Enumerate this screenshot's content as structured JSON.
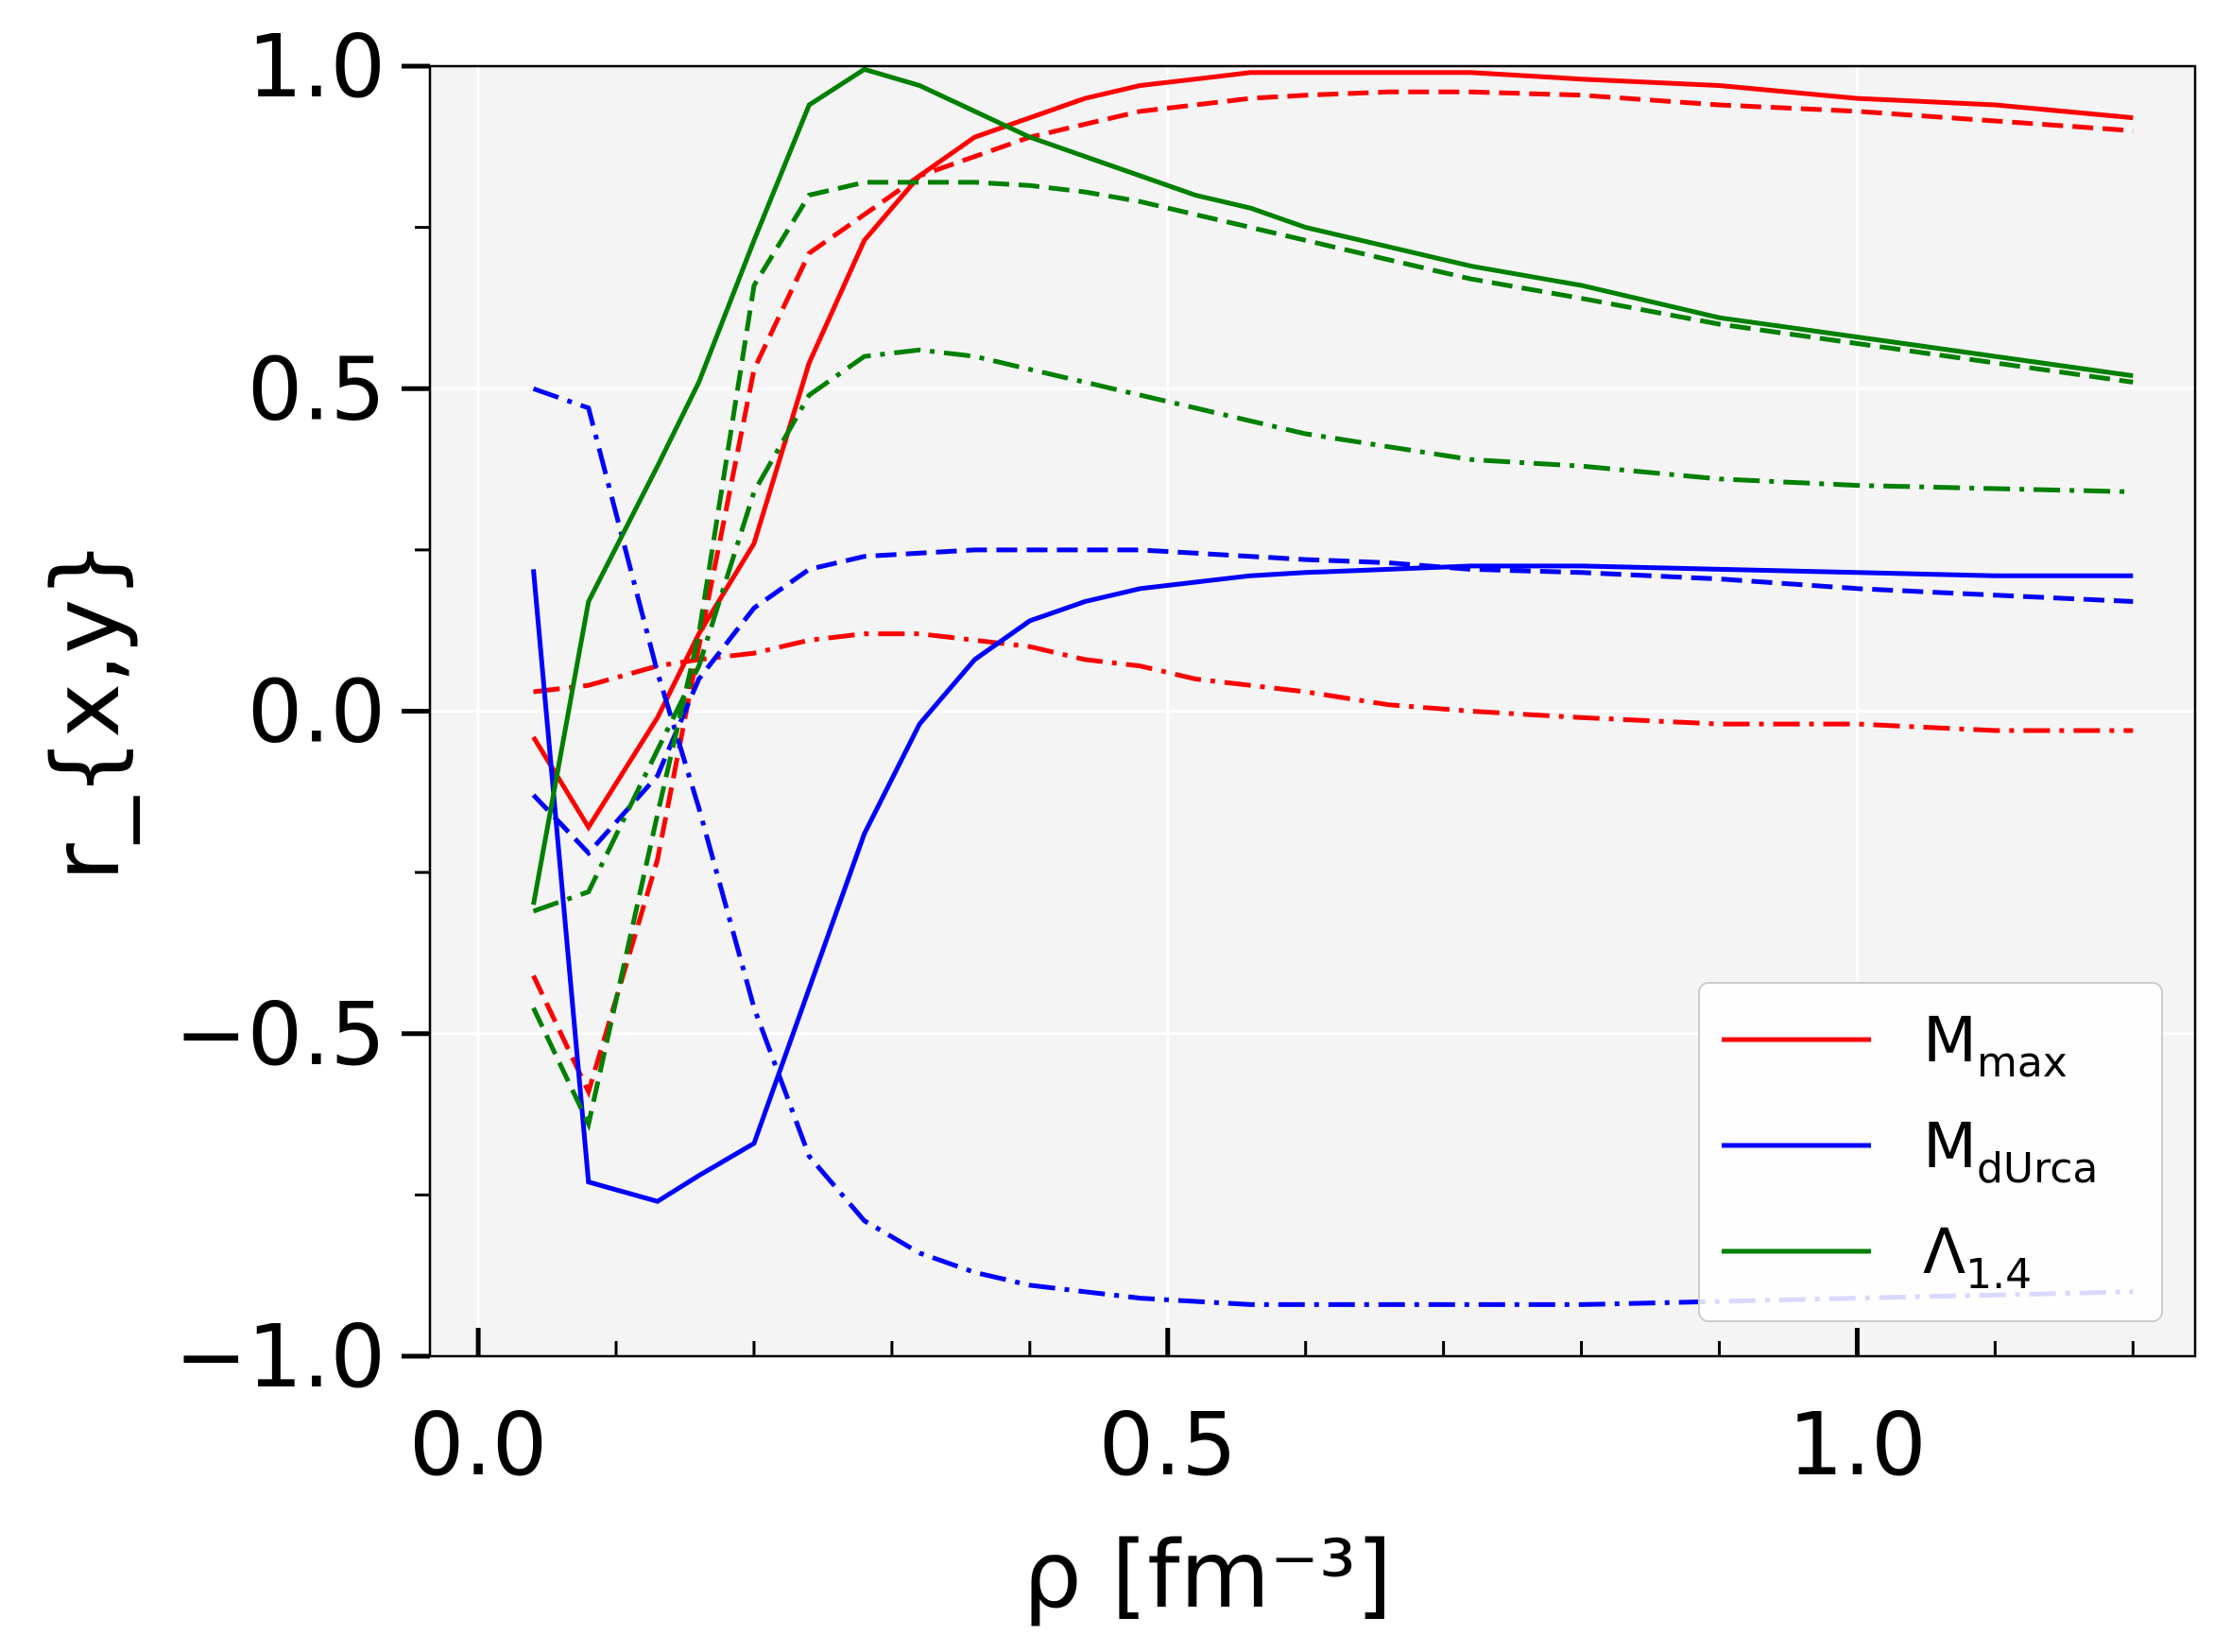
{
  "chart_data": {
    "type": "line",
    "title": "",
    "xlabel": "ρ [fm⁻³]",
    "ylabel": "r_{x,y}",
    "xlim": [
      -0.035,
      1.245
    ],
    "ylim": [
      -1.0,
      1.0
    ],
    "x_ticks": [
      0.0,
      0.5,
      1.0
    ],
    "x_tick_labels": [
      "0.0",
      "0.5",
      "1.0"
    ],
    "y_ticks": [
      -1.0,
      -0.5,
      0.0,
      0.5,
      1.0
    ],
    "y_tick_labels": [
      "−1.0",
      "−0.5",
      "0.0",
      "0.5",
      "1.0"
    ],
    "grid": true,
    "legend_placement": "lower-right",
    "colors": {
      "mmax": "#ff0000",
      "mdurca": "#0000ff",
      "lambda": "#008000",
      "background": "#f4f4f4"
    },
    "legend": [
      {
        "main": "M",
        "sub": "max",
        "color": "#ff0000"
      },
      {
        "main": "M",
        "sub": "dUrca",
        "color": "#0000ff"
      },
      {
        "main": "Λ",
        "sub": "1.4",
        "color": "#008000"
      }
    ],
    "x": [
      0.04,
      0.08,
      0.13,
      0.16,
      0.2,
      0.24,
      0.28,
      0.32,
      0.36,
      0.4,
      0.44,
      0.48,
      0.52,
      0.56,
      0.6,
      0.66,
      0.72,
      0.8,
      0.9,
      1.0,
      1.1,
      1.2
    ],
    "series": [
      {
        "group": "mmax",
        "style": "solid",
        "color": "#ff0000",
        "values": [
          -0.04,
          -0.18,
          -0.01,
          0.12,
          0.26,
          0.54,
          0.73,
          0.83,
          0.89,
          0.92,
          0.95,
          0.97,
          0.98,
          0.99,
          0.99,
          0.99,
          0.99,
          0.98,
          0.97,
          0.95,
          0.94,
          0.92
        ]
      },
      {
        "group": "mmax",
        "style": "dashed",
        "color": "#ff0000",
        "values": [
          -0.41,
          -0.59,
          -0.23,
          0.1,
          0.53,
          0.71,
          0.77,
          0.83,
          0.86,
          0.89,
          0.91,
          0.93,
          0.94,
          0.95,
          0.955,
          0.96,
          0.96,
          0.955,
          0.94,
          0.93,
          0.915,
          0.9
        ]
      },
      {
        "group": "mmax",
        "style": "dashdot",
        "color": "#ff0000",
        "values": [
          0.03,
          0.04,
          0.07,
          0.08,
          0.09,
          0.11,
          0.12,
          0.12,
          0.11,
          0.1,
          0.08,
          0.07,
          0.05,
          0.04,
          0.03,
          0.01,
          0.0,
          -0.01,
          -0.02,
          -0.02,
          -0.03,
          -0.03
        ]
      },
      {
        "group": "mdurca",
        "style": "solid",
        "color": "#0000ff",
        "values": [
          0.22,
          -0.73,
          -0.76,
          -0.72,
          -0.67,
          -0.43,
          -0.19,
          -0.02,
          0.08,
          0.14,
          0.17,
          0.19,
          0.2,
          0.21,
          0.215,
          0.22,
          0.225,
          0.225,
          0.22,
          0.215,
          0.21,
          0.21
        ]
      },
      {
        "group": "mdurca",
        "style": "dashed",
        "color": "#0000ff",
        "values": [
          -0.13,
          -0.22,
          -0.1,
          0.05,
          0.16,
          0.22,
          0.24,
          0.245,
          0.25,
          0.25,
          0.25,
          0.25,
          0.245,
          0.24,
          0.235,
          0.23,
          0.22,
          0.215,
          0.205,
          0.19,
          0.18,
          0.17
        ]
      },
      {
        "group": "mdurca",
        "style": "dashdot",
        "color": "#0000ff",
        "values": [
          0.5,
          0.47,
          0.06,
          -0.15,
          -0.46,
          -0.69,
          -0.79,
          -0.84,
          -0.87,
          -0.89,
          -0.9,
          -0.91,
          -0.915,
          -0.92,
          -0.92,
          -0.92,
          -0.92,
          -0.92,
          -0.915,
          -0.91,
          -0.905,
          -0.9
        ]
      },
      {
        "group": "lambda",
        "style": "solid",
        "color": "#008000",
        "values": [
          -0.3,
          0.17,
          0.38,
          0.51,
          0.73,
          0.94,
          0.995,
          0.97,
          0.93,
          0.89,
          0.86,
          0.83,
          0.8,
          0.78,
          0.75,
          0.72,
          0.69,
          0.66,
          0.61,
          0.58,
          0.55,
          0.52
        ]
      },
      {
        "group": "lambda",
        "style": "dashed",
        "color": "#008000",
        "values": [
          -0.46,
          -0.64,
          -0.16,
          0.12,
          0.66,
          0.8,
          0.82,
          0.82,
          0.82,
          0.815,
          0.805,
          0.79,
          0.77,
          0.75,
          0.73,
          0.7,
          0.67,
          0.64,
          0.6,
          0.57,
          0.54,
          0.51
        ]
      },
      {
        "group": "lambda",
        "style": "dashdot",
        "color": "#008000",
        "values": [
          -0.31,
          -0.28,
          -0.06,
          0.07,
          0.34,
          0.49,
          0.55,
          0.56,
          0.55,
          0.53,
          0.51,
          0.49,
          0.47,
          0.45,
          0.43,
          0.41,
          0.39,
          0.38,
          0.36,
          0.35,
          0.345,
          0.34
        ]
      }
    ]
  }
}
